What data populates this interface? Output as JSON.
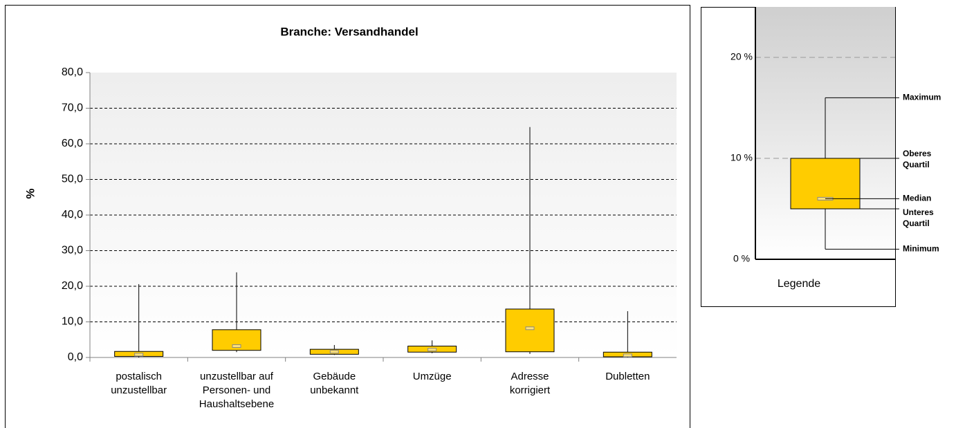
{
  "chart_data": [
    {
      "type": "box",
      "title": "Branche: Versandhandel",
      "ylabel": "%",
      "categories": [
        "postalisch\nunzustellbar",
        "unzustellbar auf\nPersonen- und\nHaushaltsebene",
        "Gebäude\nunbekannt",
        "Umzüge",
        "Adresse\nkorrigiert",
        "Dubletten"
      ],
      "min": [
        0,
        1.5,
        0.7,
        1.2,
        1.0,
        0
      ],
      "q1": [
        0.3,
        2.0,
        0.9,
        1.5,
        1.6,
        0.2
      ],
      "median": [
        0.8,
        3.2,
        1.6,
        2.2,
        8.2,
        0.6
      ],
      "q3": [
        1.7,
        7.8,
        2.3,
        3.2,
        13.6,
        1.5
      ],
      "max": [
        20.6,
        23.9,
        3.5,
        4.8,
        64.7,
        13.0
      ],
      "color": "#ffcc00",
      "ylim": [
        0,
        80
      ],
      "yticks": [
        {
          "value": 0,
          "label": "0,0"
        },
        {
          "value": 10,
          "label": "10,0"
        },
        {
          "value": 20,
          "label": "20,0"
        },
        {
          "value": 30,
          "label": "30,0"
        },
        {
          "value": 40,
          "label": "40,0"
        },
        {
          "value": 50,
          "label": "50,0"
        },
        {
          "value": 60,
          "label": "60,0"
        },
        {
          "value": 70,
          "label": "70,0"
        },
        {
          "value": 80,
          "label": "80,0"
        }
      ],
      "grid": true
    },
    {
      "type": "box",
      "xlabel": "Legende",
      "min": [
        1
      ],
      "q1": [
        5
      ],
      "median": [
        6
      ],
      "q3": [
        10
      ],
      "max": [
        16
      ],
      "stat_labels": {
        "max": "Maximum",
        "q3": "Oberes\nQuartil",
        "median": "Median",
        "q1": "Unteres\nQuartil",
        "min": "Minimum"
      },
      "color": "#ffcc00",
      "ylim": [
        0,
        25
      ],
      "yticks": [
        {
          "value": 0,
          "label": "0 %"
        },
        {
          "value": 10,
          "label": "10 %"
        },
        {
          "value": 20,
          "label": "20 %"
        }
      ],
      "grid": true
    }
  ]
}
